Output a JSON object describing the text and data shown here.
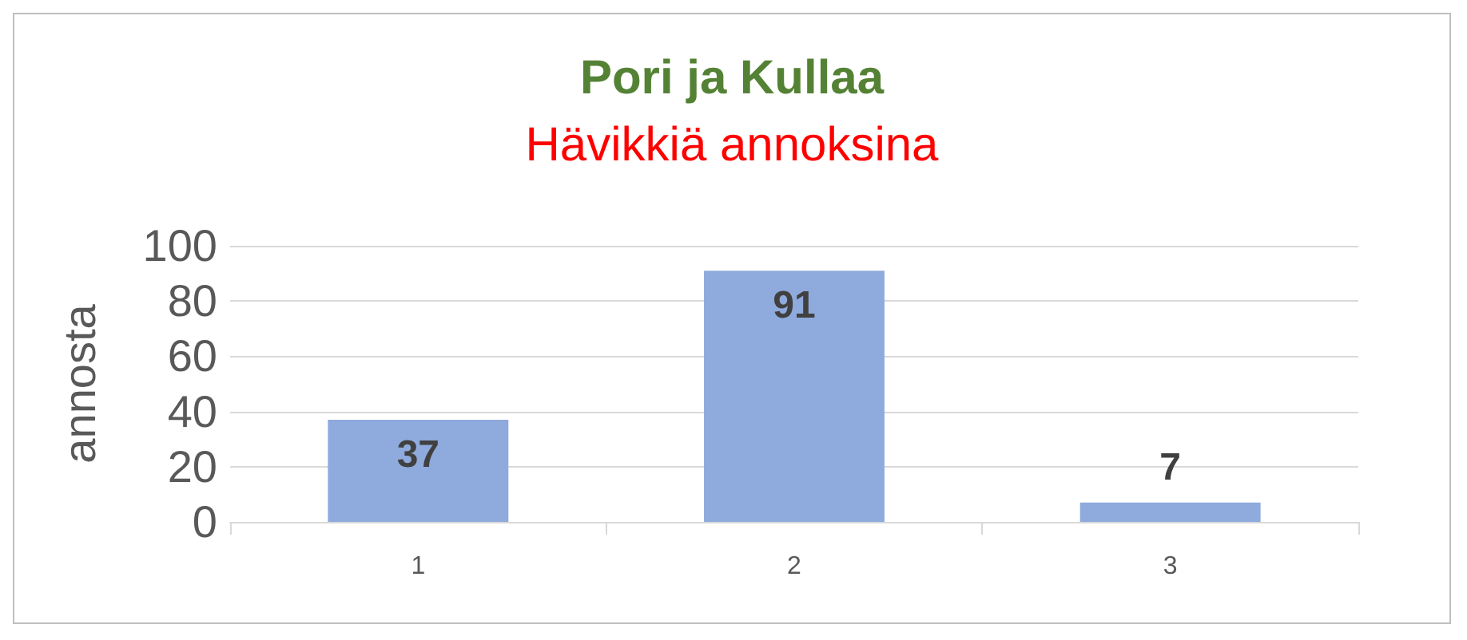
{
  "chart_data": {
    "type": "bar",
    "title": "Pori ja Kullaa",
    "subtitle": "Hävikkiä annoksina",
    "ylabel": "annosta",
    "categories": [
      "1",
      "2",
      "3"
    ],
    "values": [
      37,
      91,
      7
    ],
    "color": "#8faadc",
    "ylim": [
      0,
      100
    ],
    "yticks": [
      0,
      20,
      40,
      60,
      80,
      100
    ],
    "grid": "y",
    "data_labels": true
  }
}
